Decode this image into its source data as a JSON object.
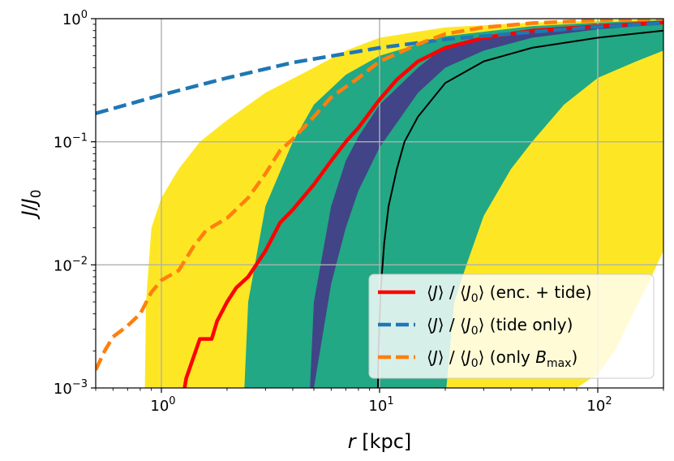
{
  "chart_data": {
    "type": "area",
    "xscale": "log",
    "yscale": "log",
    "xlim": [
      0.5,
      200
    ],
    "ylim": [
      0.001,
      1
    ],
    "grid": true,
    "xlabel": "r [kpc]",
    "ylabel": "J/J_0",
    "x_ticks": [
      "10^0",
      "10^1",
      "10^2"
    ],
    "y_ticks": [
      "10^-3",
      "10^-2",
      "10^-1",
      "10^0"
    ],
    "colors": {
      "band_outer": "#fde725",
      "band_middle": "#22a884",
      "band_inner": "#414487",
      "median": "#000000",
      "enc_tide": "#ff0000",
      "tide_only": "#1f77b4",
      "only_bmax": "#ff7f0e"
    },
    "bands": [
      {
        "name": "outer",
        "color": "#fde725",
        "lower": [
          [
            1,
            0.0008
          ],
          [
            2,
            0.0008
          ],
          [
            3,
            0.0008
          ],
          [
            5,
            0.0008
          ],
          [
            10,
            0.0008
          ],
          [
            20,
            0.0008
          ],
          [
            50,
            0.0008
          ],
          [
            80,
            0.001
          ],
          [
            100,
            0.0013
          ],
          [
            120,
            0.002
          ],
          [
            150,
            0.0045
          ],
          [
            170,
            0.007
          ],
          [
            200,
            0.013
          ]
        ],
        "upper": [
          [
            0.84,
            0.001
          ],
          [
            0.85,
            0.005
          ],
          [
            0.9,
            0.02
          ],
          [
            1,
            0.035
          ],
          [
            1.2,
            0.06
          ],
          [
            1.5,
            0.1
          ],
          [
            2,
            0.15
          ],
          [
            3,
            0.25
          ],
          [
            5,
            0.4
          ],
          [
            7,
            0.55
          ],
          [
            10,
            0.7
          ],
          [
            20,
            0.85
          ],
          [
            50,
            0.93
          ],
          [
            100,
            0.97
          ],
          [
            200,
            1.0
          ]
        ]
      },
      {
        "name": "middle",
        "color": "#22a884",
        "lower": [
          [
            20,
            0.0008
          ],
          [
            22,
            0.005
          ],
          [
            25,
            0.01
          ],
          [
            30,
            0.025
          ],
          [
            40,
            0.06
          ],
          [
            50,
            0.1
          ],
          [
            70,
            0.2
          ],
          [
            100,
            0.33
          ],
          [
            150,
            0.45
          ],
          [
            200,
            0.55
          ]
        ],
        "upper": [
          [
            2.4,
            0.001
          ],
          [
            2.5,
            0.005
          ],
          [
            3,
            0.03
          ],
          [
            4,
            0.1
          ],
          [
            5,
            0.2
          ],
          [
            7,
            0.35
          ],
          [
            10,
            0.5
          ],
          [
            20,
            0.72
          ],
          [
            50,
            0.87
          ],
          [
            100,
            0.93
          ],
          [
            200,
            0.97
          ]
        ]
      },
      {
        "name": "inner",
        "color": "#414487",
        "lower": [
          [
            4.9,
            0.0008
          ],
          [
            5,
            0.001
          ],
          [
            6,
            0.007
          ],
          [
            7,
            0.02
          ],
          [
            8,
            0.04
          ],
          [
            10,
            0.09
          ],
          [
            15,
            0.25
          ],
          [
            20,
            0.4
          ],
          [
            30,
            0.55
          ],
          [
            50,
            0.7
          ],
          [
            100,
            0.82
          ],
          [
            200,
            0.9
          ]
        ],
        "upper": [
          [
            4.8,
            0.001
          ],
          [
            5,
            0.005
          ],
          [
            6,
            0.03
          ],
          [
            7,
            0.07
          ],
          [
            8,
            0.11
          ],
          [
            10,
            0.2
          ],
          [
            15,
            0.4
          ],
          [
            20,
            0.6
          ],
          [
            30,
            0.72
          ],
          [
            50,
            0.82
          ],
          [
            100,
            0.9
          ],
          [
            200,
            0.95
          ]
        ]
      }
    ],
    "series": [
      {
        "legend": "median",
        "style": "solid-thin",
        "color": "#000000",
        "points": [
          [
            9.8,
            0.0008
          ],
          [
            9.9,
            0.002
          ],
          [
            10.1,
            0.006
          ],
          [
            10.5,
            0.015
          ],
          [
            11,
            0.03
          ],
          [
            12,
            0.06
          ],
          [
            13,
            0.1
          ],
          [
            15,
            0.16
          ],
          [
            20,
            0.3
          ],
          [
            30,
            0.45
          ],
          [
            50,
            0.58
          ],
          [
            100,
            0.7
          ],
          [
            200,
            0.8
          ]
        ]
      },
      {
        "legend": "enc_tide",
        "style": "solid",
        "color": "#ff0000",
        "points": [
          [
            1.25,
            0.0008
          ],
          [
            1.3,
            0.0012
          ],
          [
            1.5,
            0.0025
          ],
          [
            1.7,
            0.0025
          ],
          [
            1.8,
            0.0035
          ],
          [
            2,
            0.005
          ],
          [
            2.2,
            0.0065
          ],
          [
            2.5,
            0.008
          ],
          [
            3,
            0.013
          ],
          [
            3.5,
            0.022
          ],
          [
            4,
            0.028
          ],
          [
            5,
            0.045
          ],
          [
            6,
            0.07
          ],
          [
            7,
            0.1
          ],
          [
            8,
            0.13
          ],
          [
            10,
            0.22
          ],
          [
            12,
            0.32
          ],
          [
            15,
            0.45
          ],
          [
            20,
            0.58
          ],
          [
            30,
            0.7
          ],
          [
            50,
            0.8
          ],
          [
            100,
            0.87
          ],
          [
            200,
            0.93
          ]
        ]
      },
      {
        "legend": "tide_only",
        "style": "dashed",
        "color": "#1f77b4",
        "points": [
          [
            0.5,
            0.17
          ],
          [
            1,
            0.24
          ],
          [
            2,
            0.33
          ],
          [
            4,
            0.44
          ],
          [
            10,
            0.58
          ],
          [
            20,
            0.68
          ],
          [
            50,
            0.78
          ],
          [
            100,
            0.86
          ],
          [
            200,
            0.92
          ]
        ]
      },
      {
        "legend": "only_bmax",
        "style": "dashed",
        "color": "#ff7f0e",
        "points": [
          [
            0.5,
            0.0014
          ],
          [
            0.55,
            0.002
          ],
          [
            0.6,
            0.0026
          ],
          [
            0.7,
            0.0032
          ],
          [
            0.8,
            0.004
          ],
          [
            0.9,
            0.006
          ],
          [
            1,
            0.0075
          ],
          [
            1.2,
            0.009
          ],
          [
            1.4,
            0.014
          ],
          [
            1.6,
            0.019
          ],
          [
            2,
            0.024
          ],
          [
            2.5,
            0.035
          ],
          [
            3,
            0.055
          ],
          [
            3.5,
            0.085
          ],
          [
            4,
            0.105
          ],
          [
            5,
            0.16
          ],
          [
            6,
            0.23
          ],
          [
            8,
            0.33
          ],
          [
            10,
            0.45
          ],
          [
            15,
            0.62
          ],
          [
            20,
            0.75
          ],
          [
            30,
            0.85
          ],
          [
            50,
            0.92
          ],
          [
            100,
            0.97
          ],
          [
            200,
            1.0
          ]
        ]
      }
    ],
    "legend": {
      "position": "lower right",
      "entries": [
        {
          "key": "enc_tide",
          "label": "⟨J⟩ / ⟨J₀⟩ (enc. + tide)"
        },
        {
          "key": "tide_only",
          "label": "⟨J⟩ / ⟨J₀⟩ (tide only)"
        },
        {
          "key": "only_bmax",
          "label": "⟨J⟩ / ⟨J₀⟩ (only B_max)"
        }
      ]
    }
  }
}
